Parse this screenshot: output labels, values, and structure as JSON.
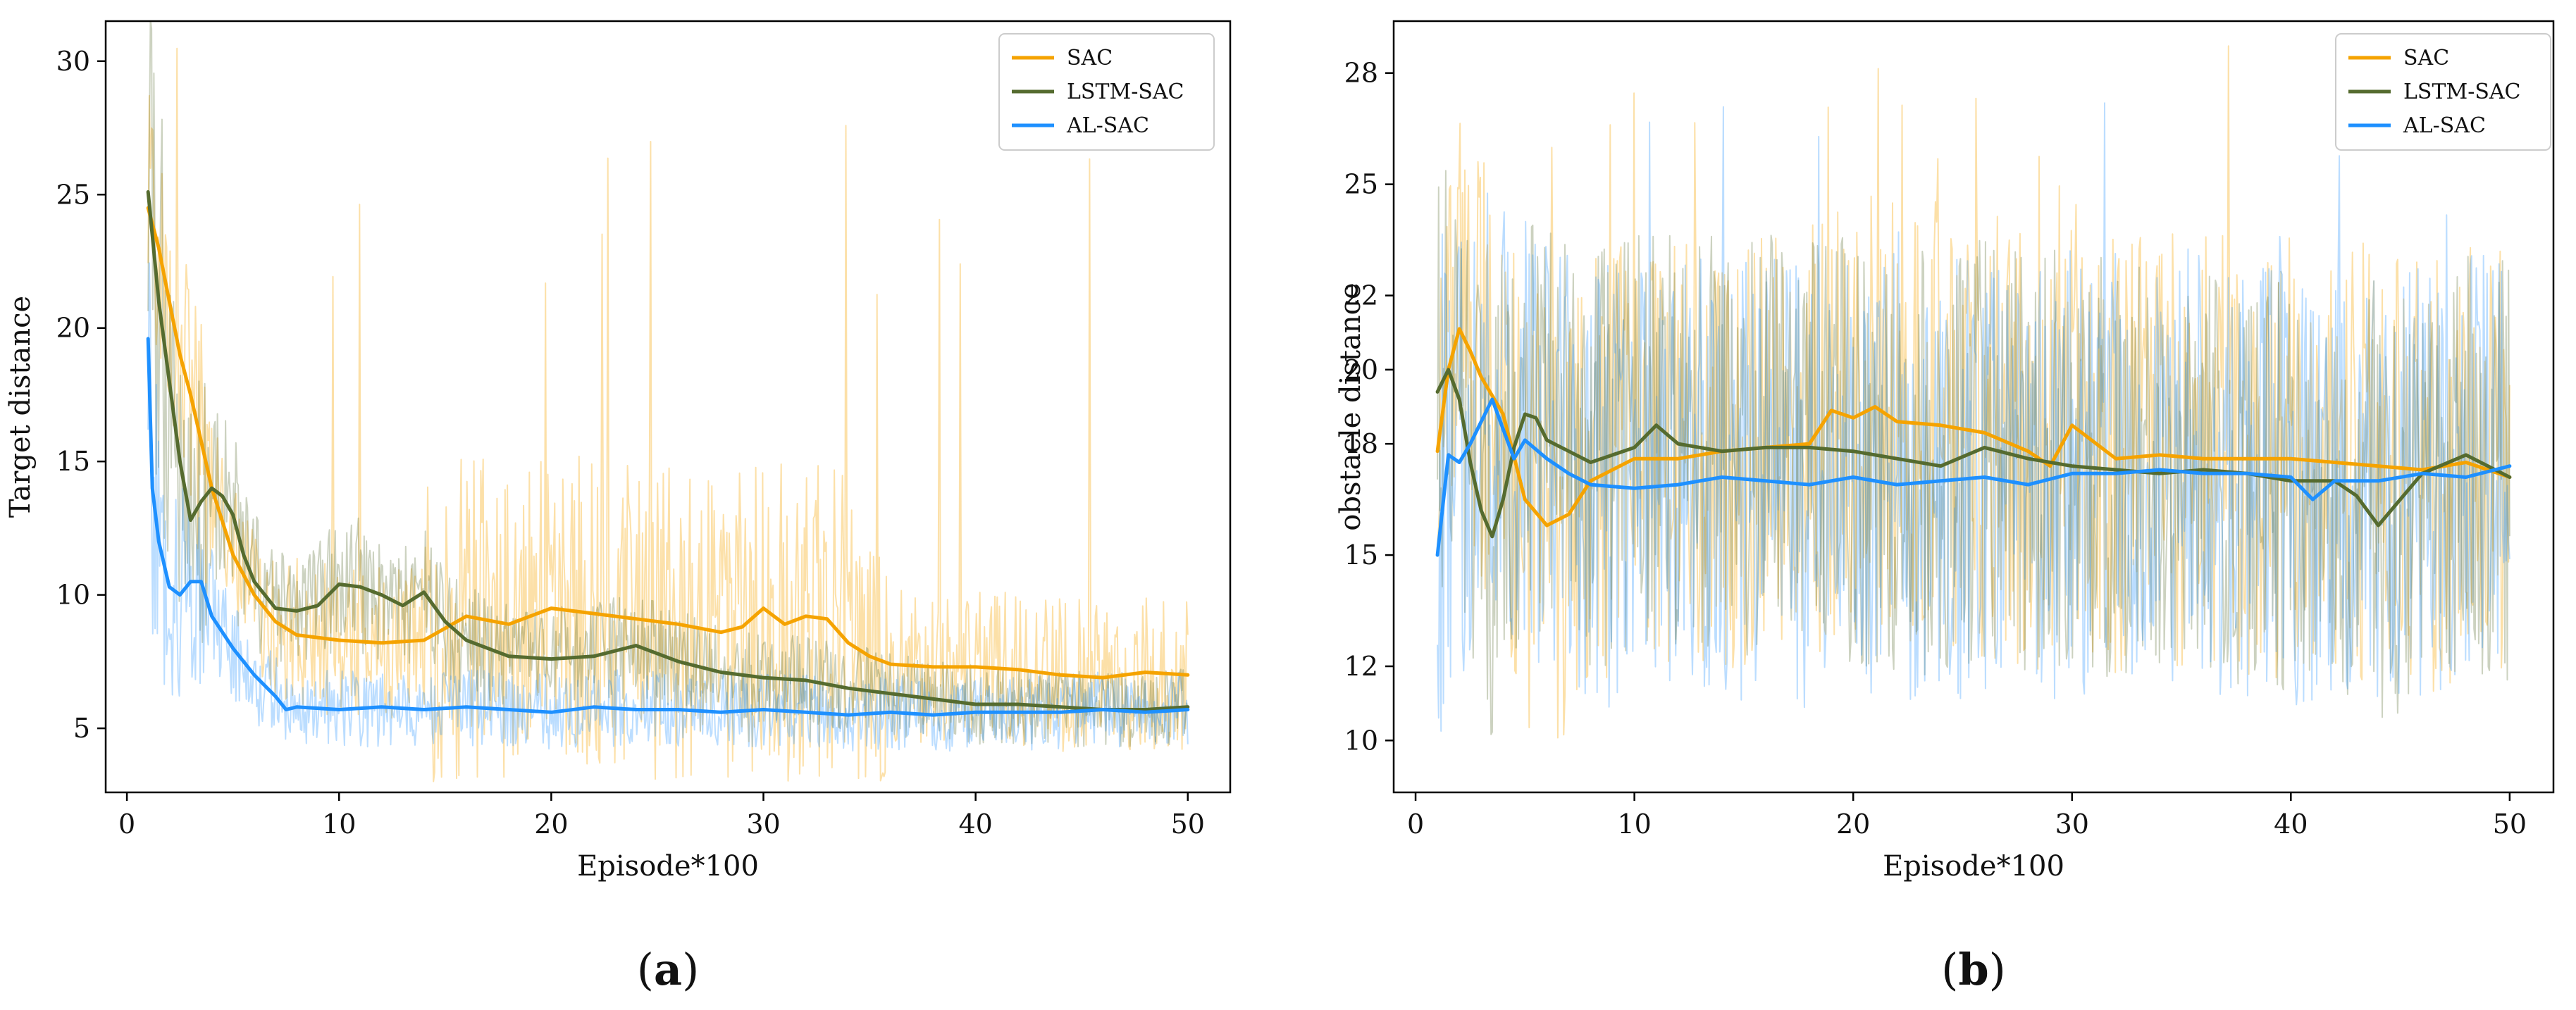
{
  "colors": {
    "sac": "#F5A300",
    "lstm_sac": "#556B2F",
    "al_sac": "#1E90FF"
  },
  "chart_data": [
    {
      "type": "line",
      "panel_label": "(a)",
      "panel_letter": "a",
      "xlabel": "Episode*100",
      "ylabel": "Target distance",
      "xlim": [
        -1,
        52
      ],
      "ylim": [
        2.6,
        31.5
      ],
      "xticks": [
        0,
        10,
        20,
        30,
        40,
        50
      ],
      "yticks": [
        5,
        10,
        15,
        20,
        25,
        30
      ],
      "legend": {
        "placement": "top-right",
        "entries": [
          "SAC",
          "LSTM-SAC",
          "AL-SAC"
        ]
      },
      "series": [
        {
          "name": "SAC",
          "band": {
            "lo": 6.0,
            "hi": 11.0,
            "spike_max": 30.5
          },
          "x": [
            1,
            1.5,
            2,
            2.5,
            3,
            4,
            5,
            6,
            7,
            8,
            10,
            12,
            14,
            16,
            18,
            20,
            22,
            24,
            26,
            28,
            29,
            30,
            31,
            32,
            33,
            34,
            35,
            36,
            38,
            40,
            42,
            44,
            46,
            48,
            50
          ],
          "values": [
            24.5,
            23.0,
            21.0,
            19.0,
            17.5,
            14.0,
            11.5,
            10.0,
            9.0,
            8.5,
            8.3,
            8.2,
            8.3,
            9.2,
            8.9,
            9.5,
            9.3,
            9.1,
            8.9,
            8.6,
            8.8,
            9.5,
            8.9,
            9.2,
            9.1,
            8.2,
            7.7,
            7.4,
            7.3,
            7.3,
            7.2,
            7.0,
            6.9,
            7.1,
            7.0
          ]
        },
        {
          "name": "LSTM-SAC",
          "x": [
            1,
            1.5,
            2,
            2.5,
            3,
            3.5,
            4,
            4.5,
            5,
            5.5,
            6,
            7,
            8,
            9,
            10,
            11,
            12,
            13,
            14,
            15,
            16,
            18,
            20,
            22,
            24,
            26,
            28,
            30,
            32,
            34,
            36,
            38,
            40,
            42,
            44,
            46,
            48,
            50
          ],
          "values": [
            25.1,
            21.0,
            18.0,
            15.0,
            12.8,
            13.5,
            14.0,
            13.7,
            13.0,
            11.5,
            10.5,
            9.5,
            9.4,
            9.6,
            10.4,
            10.3,
            10.0,
            9.6,
            10.1,
            9.0,
            8.3,
            7.7,
            7.6,
            7.7,
            8.1,
            7.5,
            7.1,
            6.9,
            6.8,
            6.5,
            6.3,
            6.1,
            5.9,
            5.9,
            5.8,
            5.7,
            5.7,
            5.8
          ]
        },
        {
          "name": "AL-SAC",
          "x": [
            1,
            1.2,
            1.5,
            2,
            2.5,
            3,
            3.5,
            4,
            5,
            6,
            7,
            7.5,
            8,
            10,
            12,
            14,
            16,
            18,
            20,
            22,
            24,
            26,
            28,
            30,
            32,
            34,
            36,
            38,
            40,
            42,
            44,
            46,
            48,
            50
          ],
          "values": [
            19.6,
            14.0,
            12.0,
            10.3,
            10.0,
            10.5,
            10.5,
            9.2,
            8.0,
            7.0,
            6.2,
            5.7,
            5.8,
            5.7,
            5.8,
            5.7,
            5.8,
            5.7,
            5.6,
            5.8,
            5.7,
            5.7,
            5.6,
            5.7,
            5.6,
            5.5,
            5.6,
            5.5,
            5.6,
            5.6,
            5.6,
            5.7,
            5.6,
            5.7
          ]
        }
      ]
    },
    {
      "type": "line",
      "panel_label": "(b)",
      "panel_letter": "b",
      "xlabel": "Episode*100",
      "ylabel": "obstacle distance",
      "xlim": [
        -1,
        52
      ],
      "ylim": [
        8.6,
        29.4
      ],
      "xticks": [
        0,
        10,
        20,
        30,
        40,
        50
      ],
      "yticks": [
        10,
        12,
        15,
        18,
        20,
        22,
        25,
        28
      ],
      "legend": {
        "placement": "top-right",
        "entries": [
          "SAC",
          "LSTM-SAC",
          "AL-SAC"
        ]
      },
      "series": [
        {
          "name": "SAC",
          "band": {
            "lo": 12.0,
            "hi": 22.5,
            "spike_max": 29.0
          },
          "x": [
            1,
            1.5,
            2,
            2.5,
            3,
            4,
            5,
            6,
            7,
            8,
            10,
            12,
            14,
            16,
            18,
            19,
            20,
            21,
            22,
            24,
            26,
            28,
            29,
            30,
            32,
            34,
            36,
            38,
            40,
            42,
            44,
            46,
            48,
            50
          ],
          "values": [
            17.8,
            20.0,
            21.1,
            20.5,
            19.8,
            18.8,
            16.5,
            15.8,
            16.1,
            17.0,
            17.6,
            17.6,
            17.8,
            17.9,
            18.0,
            18.9,
            18.7,
            19.0,
            18.6,
            18.5,
            18.3,
            17.8,
            17.4,
            18.5,
            17.6,
            17.7,
            17.6,
            17.6,
            17.6,
            17.5,
            17.4,
            17.3,
            17.5,
            17.1
          ]
        },
        {
          "name": "LSTM-SAC",
          "band": {
            "lo": 11.5,
            "hi": 21.5
          },
          "x": [
            1,
            1.5,
            2,
            2.5,
            3,
            3.5,
            4,
            4.5,
            5,
            5.5,
            6,
            7,
            8,
            10,
            11,
            12,
            14,
            16,
            18,
            20,
            22,
            24,
            26,
            28,
            30,
            32,
            34,
            36,
            38,
            40,
            42,
            43,
            44,
            46,
            48,
            50
          ],
          "values": [
            19.4,
            20.0,
            19.2,
            17.5,
            16.2,
            15.5,
            16.5,
            17.9,
            18.8,
            18.7,
            18.1,
            17.8,
            17.5,
            17.9,
            18.5,
            18.0,
            17.8,
            17.9,
            17.9,
            17.8,
            17.6,
            17.4,
            17.9,
            17.6,
            17.4,
            17.3,
            17.2,
            17.3,
            17.2,
            17.0,
            17.0,
            16.6,
            15.8,
            17.2,
            17.7,
            17.1
          ]
        },
        {
          "name": "AL-SAC",
          "band": {
            "lo": 11.0,
            "hi": 21.5,
            "spike_max": 27.8
          },
          "x": [
            1,
            1.5,
            2,
            2.5,
            3,
            3.5,
            4,
            4.5,
            5,
            6,
            7,
            8,
            10,
            12,
            14,
            16,
            18,
            20,
            22,
            24,
            26,
            28,
            30,
            32,
            34,
            36,
            38,
            40,
            41,
            42,
            44,
            46,
            48,
            50
          ],
          "values": [
            15.0,
            17.7,
            17.5,
            18.0,
            18.6,
            19.2,
            18.4,
            17.6,
            18.1,
            17.6,
            17.2,
            16.9,
            16.8,
            16.9,
            17.1,
            17.0,
            16.9,
            17.1,
            16.9,
            17.0,
            17.1,
            16.9,
            17.2,
            17.2,
            17.3,
            17.2,
            17.2,
            17.1,
            16.5,
            17.0,
            17.0,
            17.2,
            17.1,
            17.4
          ]
        }
      ]
    }
  ]
}
